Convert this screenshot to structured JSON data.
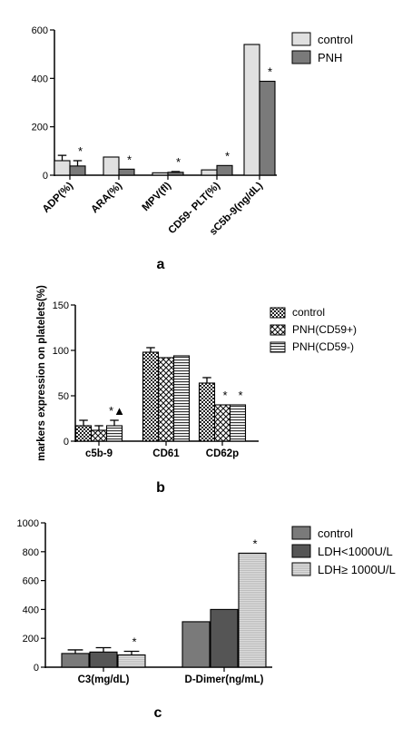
{
  "panel_labels": [
    "a",
    "b",
    "c"
  ],
  "colors": {
    "control_a": "#e0e0e0",
    "pnh_a": "#7a7a7a",
    "control_c": "#7a7a7a",
    "ldh_low": "#555555",
    "ldh_high": "#d0d0d0",
    "axis": "#000000"
  },
  "chart_data": [
    {
      "type": "bar",
      "panel": "a",
      "title": "",
      "xlabel": "",
      "ylabel": "",
      "ylim": [
        0,
        600
      ],
      "yticks": [
        0,
        200,
        400,
        600
      ],
      "categories": [
        "ADP(%)",
        "ARA(%)",
        "MPV(fl)",
        "CD59- PLT(%)",
        "sC5b-9(ng/dL)"
      ],
      "series": [
        {
          "name": "control",
          "values": [
            60,
            75,
            10,
            22,
            540
          ],
          "errors": [
            22,
            0,
            0,
            0,
            0
          ]
        },
        {
          "name": "PNH",
          "values": [
            38,
            25,
            12,
            40,
            388
          ],
          "errors": [
            22,
            0,
            3,
            0,
            0
          ]
        }
      ],
      "annotations": [
        {
          "category": 0,
          "series": 1,
          "text": "*"
        },
        {
          "category": 1,
          "series": 1,
          "text": "*"
        },
        {
          "category": 2,
          "series": 1,
          "text": "*"
        },
        {
          "category": 3,
          "series": 1,
          "text": "*"
        },
        {
          "category": 4,
          "series": 1,
          "text": "*"
        }
      ],
      "grid": false,
      "legend": "top-right"
    },
    {
      "type": "bar",
      "panel": "b",
      "title": "",
      "xlabel": "",
      "ylabel": "markers expression on platelets(%)",
      "ylim": [
        0,
        150
      ],
      "yticks": [
        0,
        50,
        100,
        150
      ],
      "categories": [
        "c5b-9",
        "CD61",
        "CD62p"
      ],
      "series": [
        {
          "name": "control",
          "values": [
            17,
            98,
            64
          ],
          "errors": [
            6,
            5,
            6
          ]
        },
        {
          "name": "PNH(CD59+)",
          "values": [
            12,
            92,
            40
          ],
          "errors": [
            5,
            0,
            0
          ]
        },
        {
          "name": "PNH(CD59-)",
          "values": [
            17,
            94,
            40
          ],
          "errors": [
            6,
            0,
            0
          ]
        }
      ],
      "annotations": [
        {
          "category": 0,
          "series": 2,
          "text": "*▲"
        },
        {
          "category": 2,
          "series": 1,
          "text": "*"
        },
        {
          "category": 2,
          "series": 2,
          "text": "*"
        }
      ],
      "grid": false,
      "legend": "top-right"
    },
    {
      "type": "bar",
      "panel": "c",
      "title": "",
      "xlabel": "",
      "ylabel": "",
      "ylim": [
        0,
        1000
      ],
      "yticks": [
        0,
        200,
        400,
        600,
        800,
        1000
      ],
      "categories": [
        "C3(mg/dL)",
        "D-Dimer(ng/mL)"
      ],
      "series": [
        {
          "name": "control",
          "values": [
            95,
            315
          ],
          "errors": [
            25,
            0
          ]
        },
        {
          "name": "LDH<1000U/L",
          "values": [
            105,
            400
          ],
          "errors": [
            30,
            0
          ]
        },
        {
          "name": "LDH≥ 1000U/L",
          "values": [
            85,
            790
          ],
          "errors": [
            25,
            0
          ]
        }
      ],
      "annotations": [
        {
          "category": 0,
          "series": 2,
          "text": "*"
        },
        {
          "category": 1,
          "series": 2,
          "text": "*"
        }
      ],
      "grid": false,
      "legend": "top-right"
    }
  ]
}
